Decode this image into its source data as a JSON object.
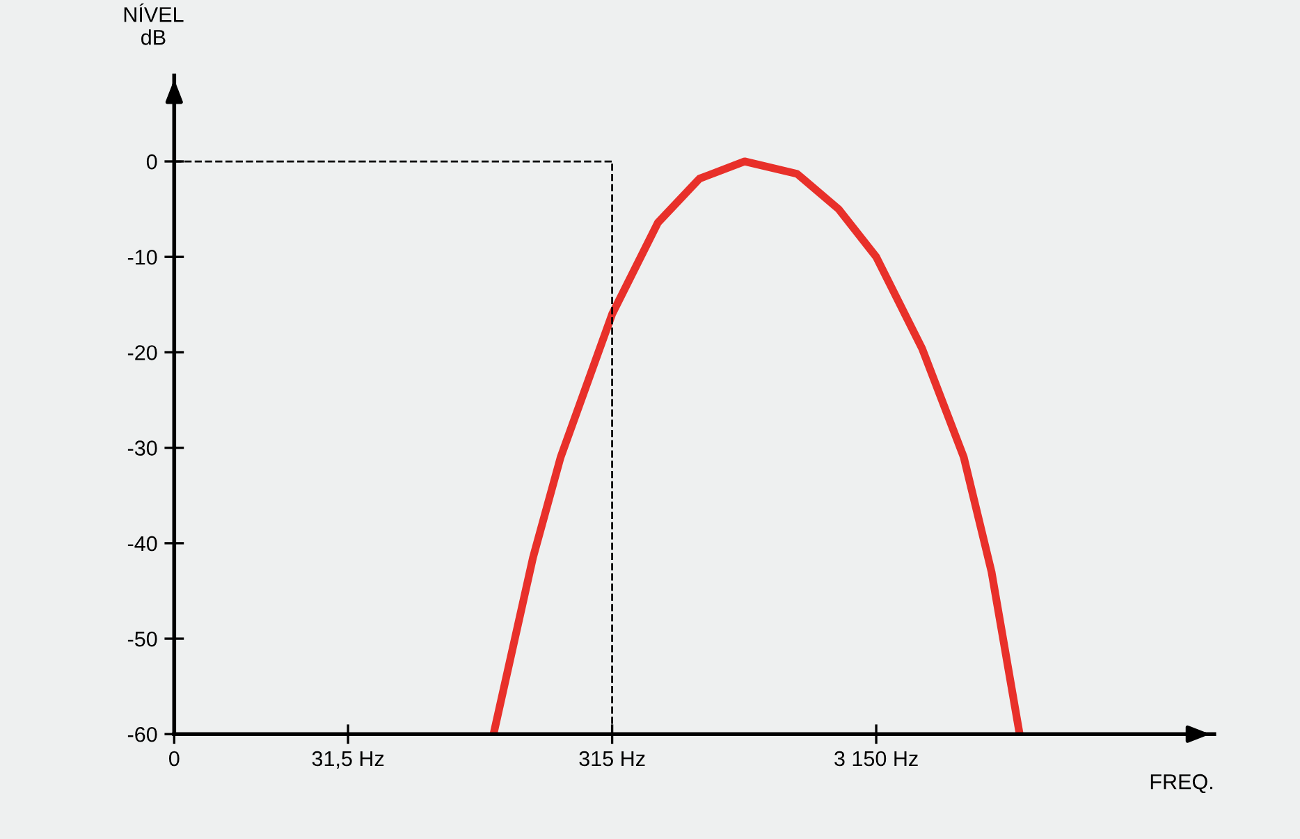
{
  "chart_data": {
    "type": "line",
    "ylabel": "NÍVEL\ndB",
    "xlabel": "FREQ.",
    "log": "x",
    "x": [
      112,
      158,
      201,
      315,
      470,
      675,
      1000,
      1580,
      2270,
      3150,
      4700,
      6760,
      8610,
      11000
    ],
    "series": [
      {
        "color": "#e8302a",
        "values": [
          -60,
          -41.5,
          -31,
          -16,
          -6.4,
          -1.8,
          0,
          -1.3,
          -5,
          -10,
          -19.6,
          -31,
          -43,
          -60
        ]
      }
    ],
    "xlim": [
      0,
      60000
    ],
    "ylim": [
      -60,
      9
    ],
    "xticks": [
      0,
      {
        "value": 31.5,
        "label": "31,5 Hz"
      },
      {
        "value": 315,
        "label": "315 Hz"
      },
      {
        "value": 3150,
        "label": "3 150 Hz"
      }
    ],
    "yticks": [
      0,
      -10,
      -20,
      -30,
      -40,
      -50,
      -60
    ],
    "ref_lines": [
      {
        "axis": "y",
        "value": 0,
        "line_style": "dashed"
      },
      {
        "axis": "x",
        "value": 315,
        "line_style": "dashed"
      }
    ],
    "grid": false,
    "marker": "none",
    "line_style": "solid",
    "legend": false
  }
}
